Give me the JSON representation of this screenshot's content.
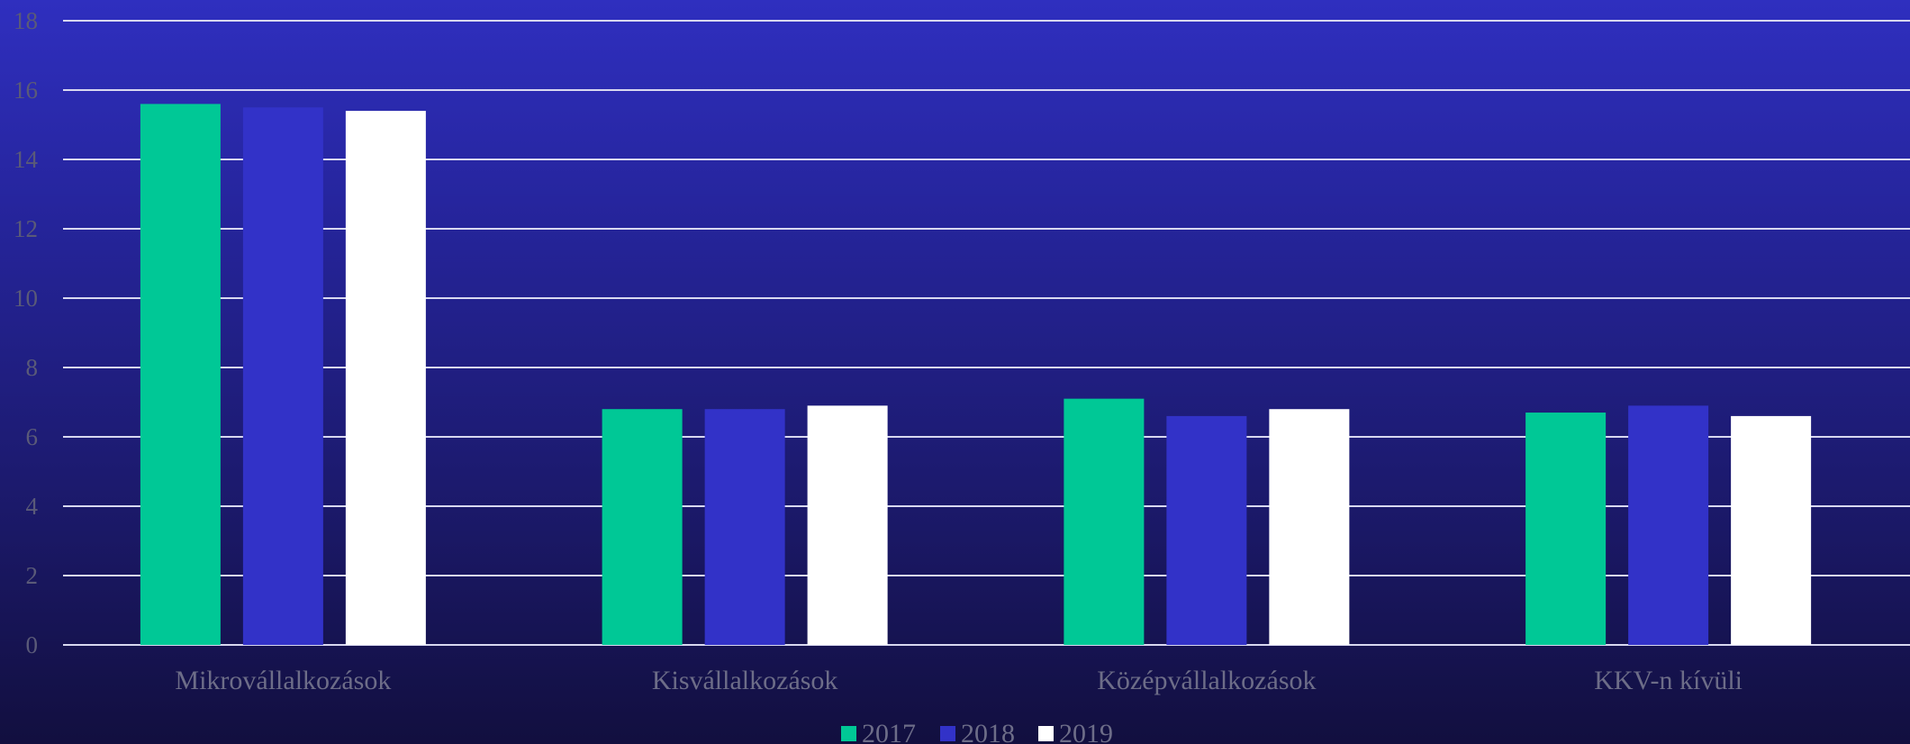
{
  "chart_data": {
    "type": "bar",
    "categories": [
      "Mikrovállalkozások",
      "Kisvállalkozások",
      "Középvállalkozások",
      "KKV-n kívüli"
    ],
    "series": [
      {
        "name": "2017",
        "values": [
          15.6,
          6.8,
          7.1,
          6.7
        ],
        "color": "#00c896"
      },
      {
        "name": "2018",
        "values": [
          15.5,
          6.8,
          6.6,
          6.9
        ],
        "color": "#3232c8"
      },
      {
        "name": "2019",
        "values": [
          15.4,
          6.9,
          6.8,
          6.6
        ],
        "color": "#ffffff"
      }
    ],
    "ylim": [
      0,
      18
    ],
    "yticks": [
      "0",
      "2",
      "4",
      "6",
      "8",
      "10",
      "12",
      "14",
      "16",
      "18"
    ],
    "grid": true,
    "legend_position": "bottom-center",
    "gridline_color": "#d8d8f0"
  }
}
